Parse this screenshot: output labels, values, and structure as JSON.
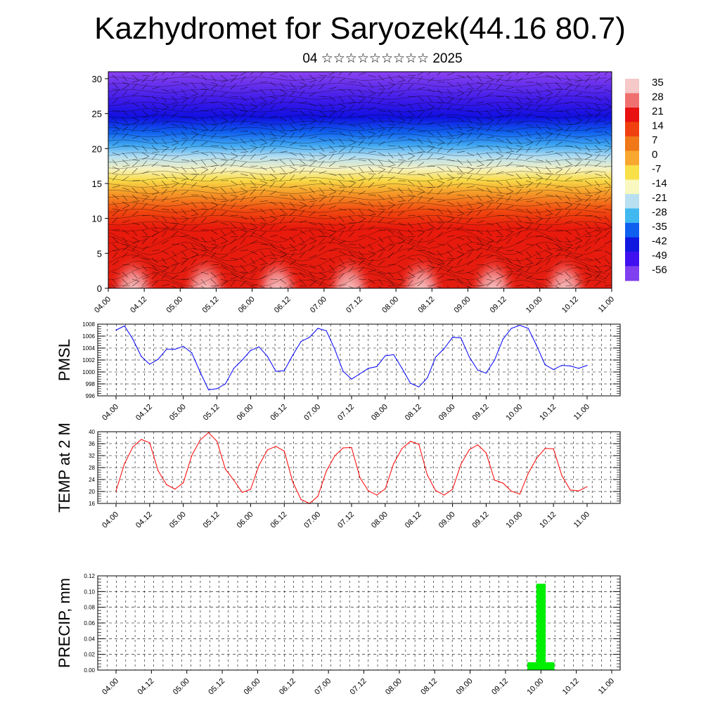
{
  "title": "Kazhydromet for Saryozek(44.16 80.7)",
  "subtitle": "04 ☆☆☆☆☆☆☆☆☆ 2025",
  "x_tick_labels": [
    "04.00",
    "04.12",
    "05.00",
    "05.12",
    "06.00",
    "06.12",
    "07.00",
    "07.12",
    "08.00",
    "08.12",
    "09.00",
    "09.12",
    "10.00",
    "10.12",
    "11.00"
  ],
  "chart_data": [
    {
      "type": "heatmap",
      "name": "upper-air-cross-section",
      "ylim": [
        0,
        31
      ],
      "y_ticks": [
        0,
        5,
        10,
        15,
        20,
        25,
        30
      ],
      "colorbar": {
        "labels": [
          "35",
          "28",
          "21",
          "14",
          "7",
          "0",
          "-7",
          "-14",
          "-21",
          "-28",
          "-35",
          "-42",
          "-49",
          "-56"
        ],
        "colors": [
          "#f6c8c8",
          "#f07070",
          "#e81010",
          "#f04010",
          "#f07818",
          "#f8a830",
          "#f8e048",
          "#f8f8c0",
          "#b8e0f0",
          "#40b8f0",
          "#1060f0",
          "#1018e0",
          "#4010f0",
          "#8040f0"
        ]
      }
    },
    {
      "type": "line",
      "ylabel": "PMSL",
      "ylim": [
        996,
        1008
      ],
      "y_ticks": [
        996,
        998,
        1000,
        1002,
        1004,
        1006,
        1008
      ],
      "color": "#0000ff",
      "x": [
        0,
        3,
        6,
        9,
        12,
        15,
        18,
        21,
        24,
        27,
        30,
        33,
        36,
        39,
        42,
        45,
        48,
        51,
        54,
        57,
        60,
        63,
        66,
        69,
        72,
        75,
        78,
        81,
        84,
        87,
        90,
        93,
        96,
        99,
        102,
        105,
        108,
        111,
        114,
        117,
        120,
        123,
        126,
        129,
        132,
        135,
        138,
        141,
        144,
        147,
        150,
        153,
        156,
        159,
        162,
        165,
        168
      ],
      "values": [
        1007.0,
        1007.7,
        1005.5,
        1002.6,
        1001.3,
        1002.1,
        1003.8,
        1003.8,
        1004.3,
        1003.2,
        1000.0,
        997.0,
        997.2,
        998.0,
        1000.6,
        1002.0,
        1003.6,
        1004.2,
        1002.6,
        1000.1,
        1000.2,
        1002.8,
        1005.1,
        1005.8,
        1007.3,
        1006.9,
        1003.8,
        1000.1,
        998.8,
        999.7,
        1000.6,
        1000.9,
        1002.7,
        1002.9,
        1000.6,
        998.1,
        997.5,
        999.0,
        1002.5,
        1003.9,
        1005.8,
        1005.7,
        1002.5,
        1000.3,
        999.8,
        1002.0,
        1005.5,
        1007.3,
        1007.8,
        1007.3,
        1004.4,
        1001.2,
        1000.4,
        1001.1,
        1001.0,
        1000.6,
        1001.1
      ]
    },
    {
      "type": "line",
      "ylabel": "TEMP at 2 M",
      "ylim": [
        16,
        40
      ],
      "y_ticks": [
        16,
        20,
        24,
        28,
        32,
        36,
        40
      ],
      "color": "#ff0000",
      "x": [
        0,
        3,
        6,
        9,
        12,
        15,
        18,
        21,
        24,
        27,
        30,
        33,
        36,
        39,
        42,
        45,
        48,
        51,
        54,
        57,
        60,
        63,
        66,
        69,
        72,
        75,
        78,
        81,
        84,
        87,
        90,
        93,
        96,
        99,
        102,
        105,
        108,
        111,
        114,
        117,
        120,
        123,
        126,
        129,
        132,
        135,
        138,
        141,
        144,
        147,
        150,
        153,
        156,
        159,
        162,
        165,
        168
      ],
      "values": [
        20.2,
        29.3,
        34.9,
        37.4,
        36.3,
        27.0,
        22.3,
        20.8,
        22.9,
        32.0,
        37.2,
        39.7,
        36.8,
        27.5,
        23.8,
        19.7,
        20.7,
        28.8,
        33.9,
        35.1,
        33.5,
        23.2,
        17.3,
        16.0,
        18.4,
        26.8,
        31.9,
        34.6,
        34.7,
        24.6,
        20.2,
        18.8,
        20.9,
        29.3,
        34.4,
        36.8,
        35.8,
        25.5,
        20.3,
        18.8,
        20.7,
        29.1,
        34.0,
        35.6,
        32.9,
        23.8,
        22.8,
        20.1,
        19.1,
        26.1,
        31.1,
        34.4,
        34.3,
        25.3,
        20.5,
        20.2,
        21.6
      ]
    },
    {
      "type": "bar",
      "ylabel": "PRECIP, mm",
      "ylim": [
        0,
        0.12
      ],
      "y_ticks": [
        "0.00",
        "0.02",
        "0.04",
        "0.06",
        "0.08",
        "0.10",
        "0.12"
      ],
      "color": "#00ee00",
      "x": [
        141,
        144,
        147
      ],
      "values": [
        0.01,
        0.11,
        0.01
      ]
    }
  ]
}
